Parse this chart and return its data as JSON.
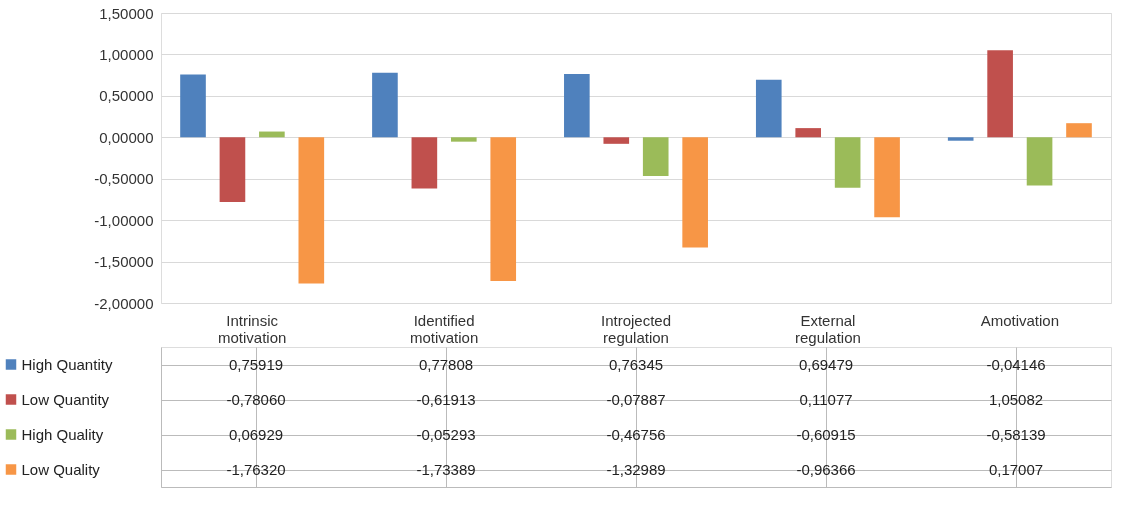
{
  "chart_data": {
    "type": "bar",
    "categories": [
      "Intrinsic motivation",
      "Identified motivation",
      "Introjected regulation",
      "External regulation",
      "Amotivation"
    ],
    "series": [
      {
        "name": "High Quantity",
        "color": "#4f81bd",
        "values": [
          0.75919,
          0.77808,
          0.76345,
          0.69479,
          -0.04146
        ],
        "value_labels": [
          "0,75919",
          "0,77808",
          "0,76345",
          "0,69479",
          "-0,04146"
        ]
      },
      {
        "name": "Low Quantity",
        "color": "#c0504d",
        "values": [
          -0.7806,
          -0.61913,
          -0.07887,
          0.11077,
          1.05082
        ],
        "value_labels": [
          "-0,78060",
          "-0,61913",
          "-0,07887",
          "0,11077",
          "1,05082"
        ]
      },
      {
        "name": "High Quality",
        "color": "#9bbb59",
        "values": [
          0.06929,
          -0.05293,
          -0.46756,
          -0.60915,
          -0.58139
        ],
        "value_labels": [
          "0,06929",
          "-0,05293",
          "-0,46756",
          "-0,60915",
          "-0,58139"
        ]
      },
      {
        "name": "Low Quality",
        "color": "#f79646",
        "values": [
          -1.7632,
          -1.73389,
          -1.32989,
          -0.96366,
          0.17007
        ],
        "value_labels": [
          "-1,76320",
          "-1,73389",
          "-1,32989",
          "-0,96366",
          "0,17007"
        ]
      }
    ],
    "ylim": [
      -2,
      1.5
    ],
    "yticks": [
      {
        "value": -2,
        "label": "-2,00000"
      },
      {
        "value": -1.5,
        "label": "-1,50000"
      },
      {
        "value": -1,
        "label": "-1,00000"
      },
      {
        "value": -0.5,
        "label": "-0,50000"
      },
      {
        "value": 0,
        "label": "0,00000"
      },
      {
        "value": 0.5,
        "label": "0,50000"
      },
      {
        "value": 1,
        "label": "1,00000"
      },
      {
        "value": 1.5,
        "label": "1,50000"
      }
    ],
    "grid": "y",
    "legend": "bottom"
  }
}
